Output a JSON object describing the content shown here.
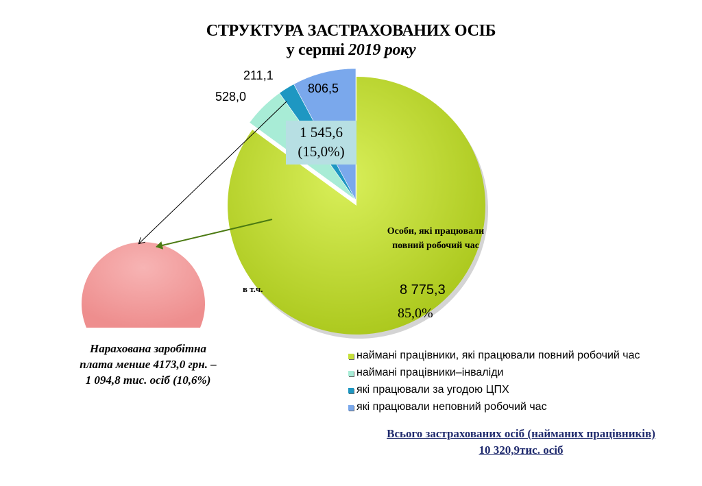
{
  "chart_data": {
    "type": "pie",
    "title": "СТРУКТУРА ЗАСТРАХОВАНИХ ОСІБ",
    "subtitle_prefix": "у серпні ",
    "subtitle_year": "2019 року",
    "unit": "тис. осіб",
    "slices": [
      {
        "name": "наймані працівники, які працювали повний робочий час",
        "value": 8775.3,
        "label": "8 775,3",
        "share_label": "85,0%",
        "color": "#c6e03a"
      },
      {
        "name": "наймані працівники–інваліди",
        "value": 528.0,
        "label": "528,0",
        "color": "#a8ecd6"
      },
      {
        "name": "які працювали за угодою ЦПХ",
        "value": 211.1,
        "label": "211,1",
        "color": "#1e97c2"
      },
      {
        "name": "які працювали неповний робочий час",
        "value": 806.5,
        "label": "806,5",
        "color": "#7aa8ec"
      }
    ],
    "other_group": {
      "value_label": "1 545,6",
      "share_label": "(15,0%)"
    },
    "inner_label": "Особи, які працювали повний робочий час",
    "included_label": "в т.ч.",
    "low_wage": {
      "line1": "Нарахована заробітна",
      "line2": "плата менше 4173,0 грн. –",
      "line3": "1 094,8 тис. осіб (10,6%)",
      "color": "#f2a0a0"
    },
    "legend_position": "bottom-right",
    "total": {
      "line1": "Всього застрахованих  осіб (найманих працівників)",
      "line2": "10 320,9тис. осіб"
    }
  }
}
